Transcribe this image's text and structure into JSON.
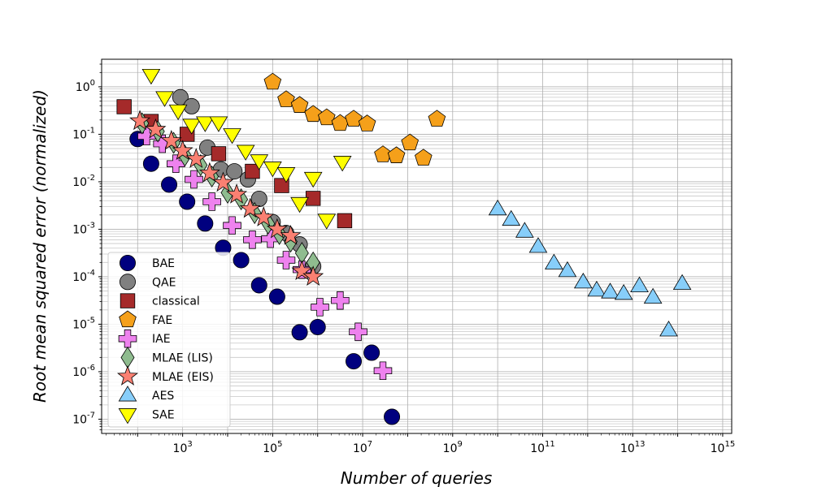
{
  "chart_data": {
    "type": "scatter",
    "title": "",
    "xlabel": "Number of queries",
    "ylabel": "Root mean squared error (normalized)",
    "xscale": "log",
    "yscale": "log",
    "xlim_exp": [
      1.2,
      15.2
    ],
    "ylim_exp": [
      -7.3,
      0.58
    ],
    "x_ticks": [
      {
        "base": "10",
        "exp": "3"
      },
      {
        "base": "10",
        "exp": "5"
      },
      {
        "base": "10",
        "exp": "7"
      },
      {
        "base": "10",
        "exp": "9"
      },
      {
        "base": "10",
        "exp": "11"
      },
      {
        "base": "10",
        "exp": "13"
      },
      {
        "base": "10",
        "exp": "15"
      }
    ],
    "y_ticks": [
      {
        "base": "10",
        "exp": "0"
      },
      {
        "base": "10",
        "exp": "-1"
      },
      {
        "base": "10",
        "exp": "-2"
      },
      {
        "base": "10",
        "exp": "-3"
      },
      {
        "base": "10",
        "exp": "-4"
      },
      {
        "base": "10",
        "exp": "-5"
      },
      {
        "base": "10",
        "exp": "-6"
      },
      {
        "base": "10",
        "exp": "-7"
      }
    ],
    "grid": "major and minor",
    "legend_position": "bottom-left",
    "series": [
      {
        "name": "BAE",
        "marker": "circle",
        "color": "#00007f",
        "log10_x": [
          2.0,
          2.3,
          2.7,
          3.1,
          3.5,
          3.9,
          4.3,
          4.7,
          5.1,
          5.6,
          6.0,
          6.8,
          7.2,
          7.65
        ],
        "log10_y": [
          -1.1,
          -1.62,
          -2.06,
          -2.42,
          -2.88,
          -3.39,
          -3.65,
          -4.18,
          -4.42,
          -5.17,
          -5.06,
          -5.78,
          -5.6,
          -6.95
        ]
      },
      {
        "name": "QAE",
        "marker": "circle",
        "color": "#808080",
        "log10_x": [
          2.95,
          3.2,
          3.55,
          3.85,
          4.15,
          4.45,
          4.7,
          5.0,
          5.3,
          5.6,
          5.9
        ],
        "log10_y": [
          -0.22,
          -0.41,
          -1.28,
          -1.74,
          -1.78,
          -1.95,
          -2.36,
          -2.85,
          -3.08,
          -3.32,
          -3.78
        ]
      },
      {
        "name": "classical",
        "marker": "square",
        "color": "#a52a2a",
        "log10_x": [
          1.7,
          2.3,
          3.1,
          3.8,
          4.55,
          5.2,
          5.9,
          6.6
        ],
        "log10_y": [
          -0.42,
          -0.73,
          -1.0,
          -1.41,
          -1.78,
          -2.08,
          -2.35,
          -2.82
        ]
      },
      {
        "name": "FAE",
        "marker": "pentagon",
        "color": "#f5a01a",
        "log10_x": [
          5.0,
          5.3,
          5.6,
          5.9,
          6.2,
          6.5,
          6.8,
          7.1,
          7.45,
          7.75,
          8.05,
          8.35,
          8.65
        ],
        "log10_y": [
          0.1,
          -0.27,
          -0.39,
          -0.58,
          -0.65,
          -0.77,
          -0.68,
          -0.78,
          -1.43,
          -1.45,
          -1.18,
          -1.5,
          -0.68
        ]
      },
      {
        "name": "IAE",
        "marker": "plus",
        "color": "#ee82ee",
        "log10_x": [
          2.2,
          2.55,
          2.85,
          3.25,
          3.65,
          4.1,
          4.55,
          4.95,
          5.3,
          5.65,
          6.05,
          6.5,
          6.9,
          7.45
        ],
        "log10_y": [
          -1.04,
          -1.2,
          -1.62,
          -1.95,
          -2.42,
          -2.92,
          -3.22,
          -3.2,
          -3.65,
          -3.85,
          -4.64,
          -4.5,
          -5.16,
          -5.98
        ]
      },
      {
        "name": "MLAE (LIS)",
        "marker": "diamond",
        "color": "#8fbc8f",
        "log10_x": [
          2.1,
          2.45,
          2.8,
          3.05,
          3.4,
          3.65,
          4.0,
          4.3,
          4.6,
          4.9,
          5.15,
          5.4,
          5.65,
          5.9
        ],
        "log10_y": [
          -0.77,
          -0.94,
          -1.18,
          -1.45,
          -1.65,
          -1.89,
          -2.23,
          -2.37,
          -2.66,
          -2.88,
          -3.1,
          -3.26,
          -3.5,
          -3.7
        ]
      },
      {
        "name": "MLAE (EIS)",
        "marker": "star",
        "color": "#fa8072",
        "log10_x": [
          2.05,
          2.4,
          2.75,
          3.0,
          3.3,
          3.6,
          3.9,
          4.2,
          4.5,
          4.8,
          5.1,
          5.4,
          5.65,
          5.9
        ],
        "log10_y": [
          -0.72,
          -0.9,
          -1.14,
          -1.35,
          -1.52,
          -1.82,
          -2.02,
          -2.27,
          -2.57,
          -2.75,
          -3.0,
          -3.14,
          -3.88,
          -4.0
        ]
      },
      {
        "name": "AES",
        "marker": "triangle-up",
        "color": "#87cefa",
        "log10_x": [
          10.0,
          10.3,
          10.6,
          10.9,
          11.25,
          11.55,
          11.9,
          12.2,
          12.5,
          12.8,
          13.15,
          13.45,
          13.8,
          14.1
        ],
        "log10_y": [
          -2.58,
          -2.8,
          -3.05,
          -3.37,
          -3.72,
          -3.88,
          -4.12,
          -4.29,
          -4.33,
          -4.36,
          -4.2,
          -4.44,
          -5.13,
          -4.15
        ]
      },
      {
        "name": "SAE",
        "marker": "triangle-down",
        "color": "#ffff00",
        "log10_x": [
          2.3,
          2.6,
          2.9,
          3.2,
          3.5,
          3.8,
          4.1,
          4.4,
          4.7,
          5.0,
          5.3,
          5.6,
          5.9,
          6.2,
          6.55
        ],
        "log10_y": [
          0.25,
          -0.22,
          -0.5,
          -0.8,
          -0.75,
          -0.75,
          -1.0,
          -1.35,
          -1.55,
          -1.7,
          -1.82,
          -2.45,
          -1.92,
          -2.8,
          -1.58
        ]
      }
    ]
  }
}
